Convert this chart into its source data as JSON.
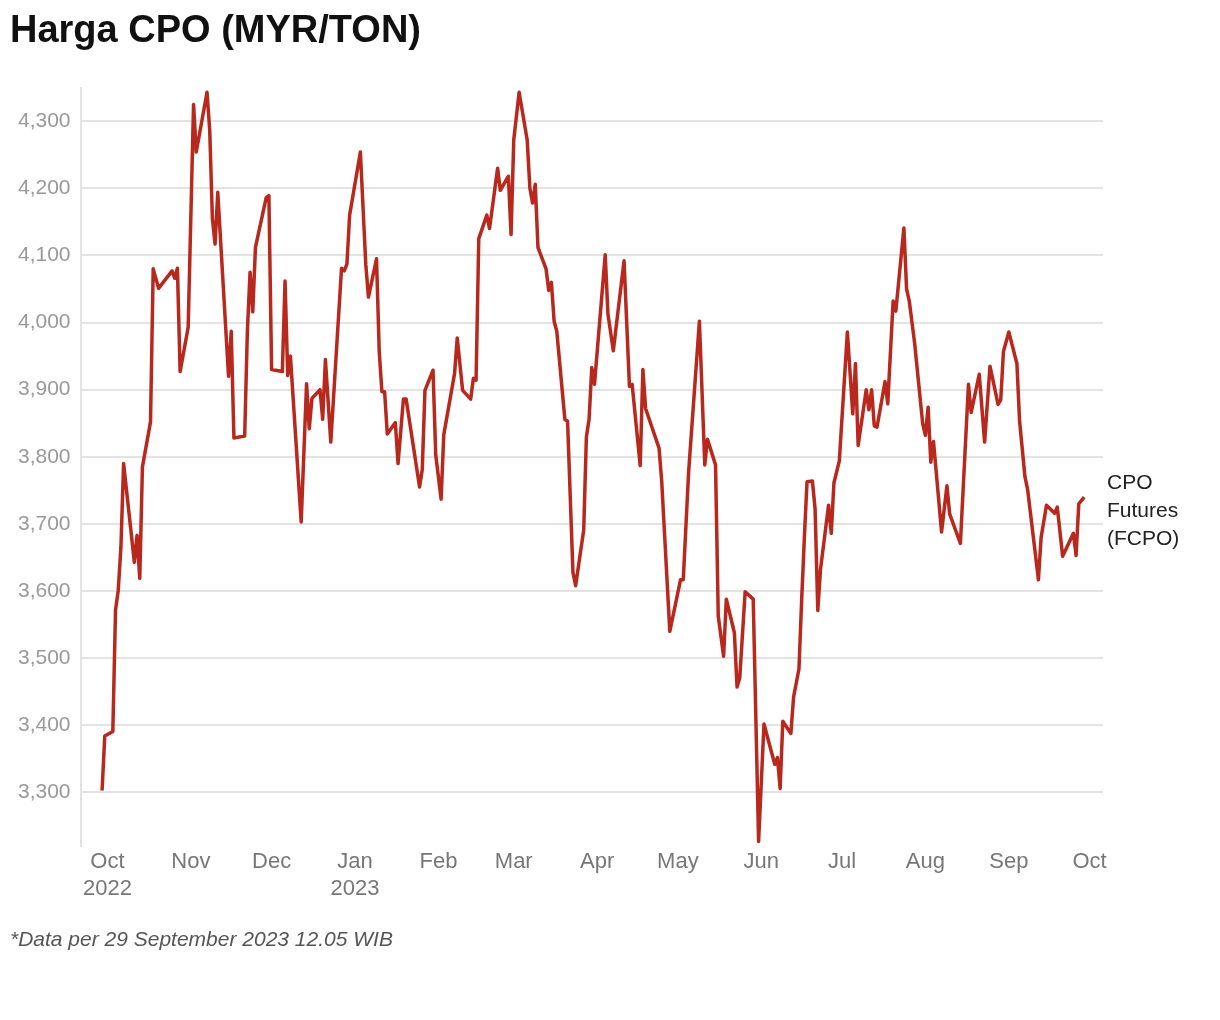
{
  "chart_data": {
    "type": "line",
    "title": "Harga CPO (MYR/TON)",
    "x": [
      "2022-09-29",
      "2022-09-30",
      "2022-10-03",
      "2022-10-04",
      "2022-10-05",
      "2022-10-06",
      "2022-10-07",
      "2022-10-11",
      "2022-10-12",
      "2022-10-13",
      "2022-10-14",
      "2022-10-17",
      "2022-10-18",
      "2022-10-20",
      "2022-10-25",
      "2022-10-26",
      "2022-10-27",
      "2022-10-28",
      "2022-10-31",
      "2022-11-02",
      "2022-11-03",
      "2022-11-07",
      "2022-11-08",
      "2022-11-09",
      "2022-11-10",
      "2022-11-11",
      "2022-11-15",
      "2022-11-16",
      "2022-11-17",
      "2022-11-21",
      "2022-11-22",
      "2022-11-23",
      "2022-11-24",
      "2022-11-25",
      "2022-11-29",
      "2022-11-30",
      "2022-12-01",
      "2022-12-05",
      "2022-12-06",
      "2022-12-07",
      "2022-12-08",
      "2022-12-12",
      "2022-12-14",
      "2022-12-15",
      "2022-12-16",
      "2022-12-19",
      "2022-12-20",
      "2022-12-21",
      "2022-12-23",
      "2022-12-27",
      "2022-12-28",
      "2022-12-29",
      "2022-12-30",
      "2023-01-03",
      "2023-01-05",
      "2023-01-06",
      "2023-01-09",
      "2023-01-10",
      "2023-01-11",
      "2023-01-12",
      "2023-01-13",
      "2023-01-16",
      "2023-01-17",
      "2023-01-19",
      "2023-01-20",
      "2023-01-25",
      "2023-01-26",
      "2023-01-27",
      "2023-01-30",
      "2023-01-31",
      "2023-02-02",
      "2023-02-03",
      "2023-02-07",
      "2023-02-08",
      "2023-02-10",
      "2023-02-13",
      "2023-02-14",
      "2023-02-15",
      "2023-02-16",
      "2023-02-19",
      "2023-02-20",
      "2023-02-23",
      "2023-02-24",
      "2023-02-27",
      "2023-02-28",
      "2023-03-01",
      "2023-03-03",
      "2023-03-06",
      "2023-03-07",
      "2023-03-08",
      "2023-03-09",
      "2023-03-10",
      "2023-03-13",
      "2023-03-14",
      "2023-03-15",
      "2023-03-16",
      "2023-03-17",
      "2023-03-20",
      "2023-03-21",
      "2023-03-23",
      "2023-03-24",
      "2023-03-27",
      "2023-03-28",
      "2023-03-29",
      "2023-03-30",
      "2023-03-31",
      "2023-04-04",
      "2023-04-05",
      "2023-04-07",
      "2023-04-11",
      "2023-04-13",
      "2023-04-14",
      "2023-04-17",
      "2023-04-18",
      "2023-04-19",
      "2023-04-24",
      "2023-04-25",
      "2023-04-28",
      "2023-05-02",
      "2023-05-03",
      "2023-05-05",
      "2023-05-09",
      "2023-05-11",
      "2023-05-12",
      "2023-05-15",
      "2023-05-16",
      "2023-05-18",
      "2023-05-19",
      "2023-05-22",
      "2023-05-23",
      "2023-05-24",
      "2023-05-26",
      "2023-05-29",
      "2023-05-31",
      "2023-06-02",
      "2023-06-06",
      "2023-06-07",
      "2023-06-08",
      "2023-06-09",
      "2023-06-12",
      "2023-06-13",
      "2023-06-15",
      "2023-06-16",
      "2023-06-17",
      "2023-06-18",
      "2023-06-20",
      "2023-06-21",
      "2023-06-22",
      "2023-06-23",
      "2023-06-26",
      "2023-06-27",
      "2023-06-28",
      "2023-06-30",
      "2023-07-03",
      "2023-07-05",
      "2023-07-06",
      "2023-07-07",
      "2023-07-10",
      "2023-07-11",
      "2023-07-12",
      "2023-07-13",
      "2023-07-14",
      "2023-07-17",
      "2023-07-18",
      "2023-07-20",
      "2023-07-21",
      "2023-07-24",
      "2023-07-25",
      "2023-07-26",
      "2023-07-28",
      "2023-07-31",
      "2023-08-01",
      "2023-08-02",
      "2023-08-03",
      "2023-08-04",
      "2023-08-07",
      "2023-08-09",
      "2023-08-10",
      "2023-08-14",
      "2023-08-17",
      "2023-08-18",
      "2023-08-21",
      "2023-08-23",
      "2023-08-25",
      "2023-08-28",
      "2023-08-29",
      "2023-08-30",
      "2023-09-01",
      "2023-09-04",
      "2023-09-05",
      "2023-09-07",
      "2023-09-08",
      "2023-09-12",
      "2023-09-13",
      "2023-09-15",
      "2023-09-18",
      "2023-09-19",
      "2023-09-21",
      "2023-09-25",
      "2023-09-26",
      "2023-09-27",
      "2023-09-29"
    ],
    "series": [
      {
        "name": "CPO Futures (FCPO)",
        "color": "#b8281d",
        "values": [
          3303,
          3384,
          3391,
          3572,
          3601,
          3665,
          3790,
          3643,
          3683,
          3619,
          3785,
          3852,
          4080,
          4051,
          4077,
          4066,
          4081,
          3927,
          3993,
          4325,
          4254,
          4343,
          4287,
          4155,
          4117,
          4194,
          3920,
          3987,
          3828,
          3831,
          3987,
          4075,
          4016,
          4112,
          4186,
          4189,
          3930,
          3927,
          4062,
          3921,
          3950,
          3703,
          3909,
          3842,
          3887,
          3900,
          3856,
          3945,
          3822,
          4081,
          4077,
          4087,
          4160,
          4254,
          4087,
          4038,
          4095,
          3957,
          3897,
          3897,
          3834,
          3851,
          3790,
          3886,
          3886,
          3755,
          3781,
          3899,
          3929,
          3803,
          3737,
          3833,
          3924,
          3977,
          3899,
          3886,
          3917,
          3914,
          4125,
          4160,
          4140,
          4230,
          4197,
          4218,
          4131,
          4272,
          4343,
          4272,
          4200,
          4178,
          4206,
          4112,
          4080,
          4048,
          4060,
          4002,
          3987,
          3856,
          3853,
          3628,
          3608,
          3691,
          3830,
          3856,
          3933,
          3908,
          4101,
          4013,
          3958,
          4092,
          3905,
          3908,
          3787,
          3930,
          3872,
          3813,
          3763,
          3540,
          3617,
          3617,
          3778,
          4002,
          3788,
          3826,
          3788,
          3563,
          3503,
          3588,
          3538,
          3457,
          3471,
          3599,
          3588,
          3227,
          3402,
          3342,
          3352,
          3306,
          3406,
          3388,
          3442,
          3484,
          3586,
          3679,
          3763,
          3764,
          3722,
          3571,
          3632,
          3728,
          3686,
          3761,
          3794,
          3986,
          3864,
          3939,
          3817,
          3900,
          3870,
          3900,
          3846,
          3844,
          3912,
          3879,
          4032,
          4017,
          4141,
          4050,
          4032,
          3969,
          3849,
          3832,
          3874,
          3792,
          3823,
          3688,
          3757,
          3715,
          3671,
          3908,
          3866,
          3923,
          3822,
          3935,
          3878,
          3885,
          3957,
          3986,
          3939,
          3853,
          3770,
          3751,
          3617,
          3680,
          3728,
          3716,
          3725,
          3652,
          3686,
          3653,
          3730,
          3740
        ]
      }
    ],
    "xlim": [
      "2022-09-21",
      "2023-10-06"
    ],
    "xticks": [
      {
        "value": "2022-10-01",
        "label": "Oct 2022"
      },
      {
        "value": "2022-11-01",
        "label": "Nov"
      },
      {
        "value": "2022-12-01",
        "label": "Dec"
      },
      {
        "value": "2023-01-01",
        "label": "Jan 2023"
      },
      {
        "value": "2023-02-01",
        "label": "Feb"
      },
      {
        "value": "2023-03-01",
        "label": "Mar"
      },
      {
        "value": "2023-04-01",
        "label": "Apr"
      },
      {
        "value": "2023-05-01",
        "label": "May"
      },
      {
        "value": "2023-06-01",
        "label": "Jun"
      },
      {
        "value": "2023-07-01",
        "label": "Jul"
      },
      {
        "value": "2023-08-01",
        "label": "Aug"
      },
      {
        "value": "2023-09-01",
        "label": "Sep"
      },
      {
        "value": "2023-10-01",
        "label": "Oct"
      }
    ],
    "ylim": [
      3220,
      4350
    ],
    "yticks": [
      {
        "value": 3300,
        "label": "3,300"
      },
      {
        "value": 3400,
        "label": "3,400"
      },
      {
        "value": 3500,
        "label": "3,500"
      },
      {
        "value": 3600,
        "label": "3,600"
      },
      {
        "value": 3700,
        "label": "3,700"
      },
      {
        "value": 3800,
        "label": "3,800"
      },
      {
        "value": 3900,
        "label": "3,900"
      },
      {
        "value": 4000,
        "label": "4,000"
      },
      {
        "value": 4100,
        "label": "4,100"
      },
      {
        "value": 4200,
        "label": "4,200"
      },
      {
        "value": 4300,
        "label": "4,300"
      }
    ],
    "grid": "y",
    "annotations": [
      "*Data per 29 September 2023 12.05 WIB"
    ]
  }
}
